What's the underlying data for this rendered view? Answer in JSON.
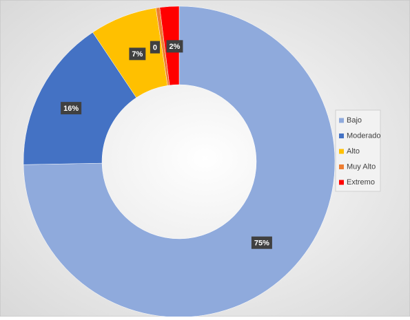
{
  "chart_data": {
    "type": "donut",
    "categories": [
      "Bajo",
      "Moderado",
      "Alto",
      "Muy Alto",
      "Extremo"
    ],
    "values": [
      75,
      16,
      7,
      0.4,
      2
    ],
    "value_labels": [
      "75%",
      "16%",
      "7%",
      "0",
      "2%"
    ],
    "colors": [
      "#8faadc",
      "#4472c4",
      "#ffc000",
      "#ed7d31",
      "#ff0000"
    ],
    "legend": "right"
  }
}
